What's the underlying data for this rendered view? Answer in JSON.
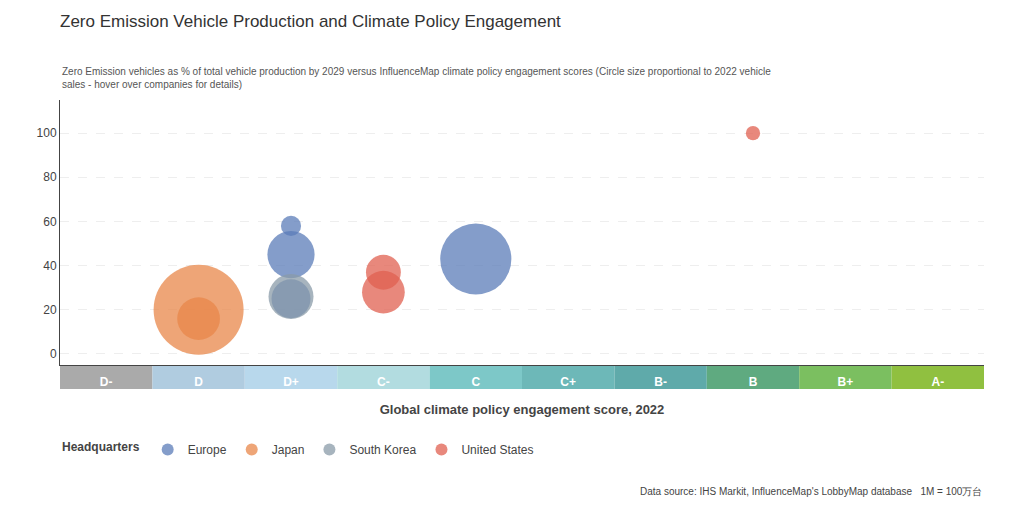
{
  "chart_data": {
    "type": "scatter",
    "title": "Zero Emission Vehicle Production and Climate Policy Engagement",
    "subtitle": "Zero Emission vehicles as % of total vehicle production by 2029 versus InfluenceMap climate policy engagement scores (Circle size proportional to 2022 vehicle\nsales - hover over companies for details)",
    "xlabel": "Global climate policy engagement score, 2022",
    "categories": [
      "D-",
      "D",
      "D+",
      "C-",
      "C",
      "C+",
      "B-",
      "B",
      "B+",
      "A-"
    ],
    "category_colors": [
      "#aaaaaa",
      "#b0cce0",
      "#b8d8ec",
      "#b2dce0",
      "#7dc8c8",
      "#6db8b8",
      "#5faaaa",
      "#5faa80",
      "#7bbf60",
      "#90c040"
    ],
    "ylim": [
      -5,
      115
    ],
    "yticks": [
      0,
      20,
      40,
      60,
      80,
      100
    ],
    "grid": true,
    "legend": "bottom left",
    "legend_title": "Headquarters",
    "series": [
      {
        "name": "Europe",
        "color": "#5b7cb8",
        "x": [
          "D+",
          "D+",
          "D+",
          "C"
        ],
        "values": [
          25,
          45,
          58,
          43
        ],
        "sizes": [
          1500,
          2200,
          400,
          5000
        ]
      },
      {
        "name": "Japan",
        "color": "#e8874a",
        "x": [
          "D",
          "D"
        ],
        "values": [
          20,
          16
        ],
        "sizes": [
          8000,
          1800
        ]
      },
      {
        "name": "South Korea",
        "color": "#8a9ba8",
        "x": [
          "D+"
        ],
        "values": [
          26
        ],
        "sizes": [
          2000
        ]
      },
      {
        "name": "United States",
        "color": "#e06050",
        "x": [
          "C-",
          "C-",
          "B"
        ],
        "values": [
          28,
          37,
          100
        ],
        "sizes": [
          1800,
          1200,
          200
        ]
      }
    ],
    "annotations": [
      "Data source: IHS Markit, InfluenceMap's LobbyMap database   1M = 100万台"
    ]
  }
}
